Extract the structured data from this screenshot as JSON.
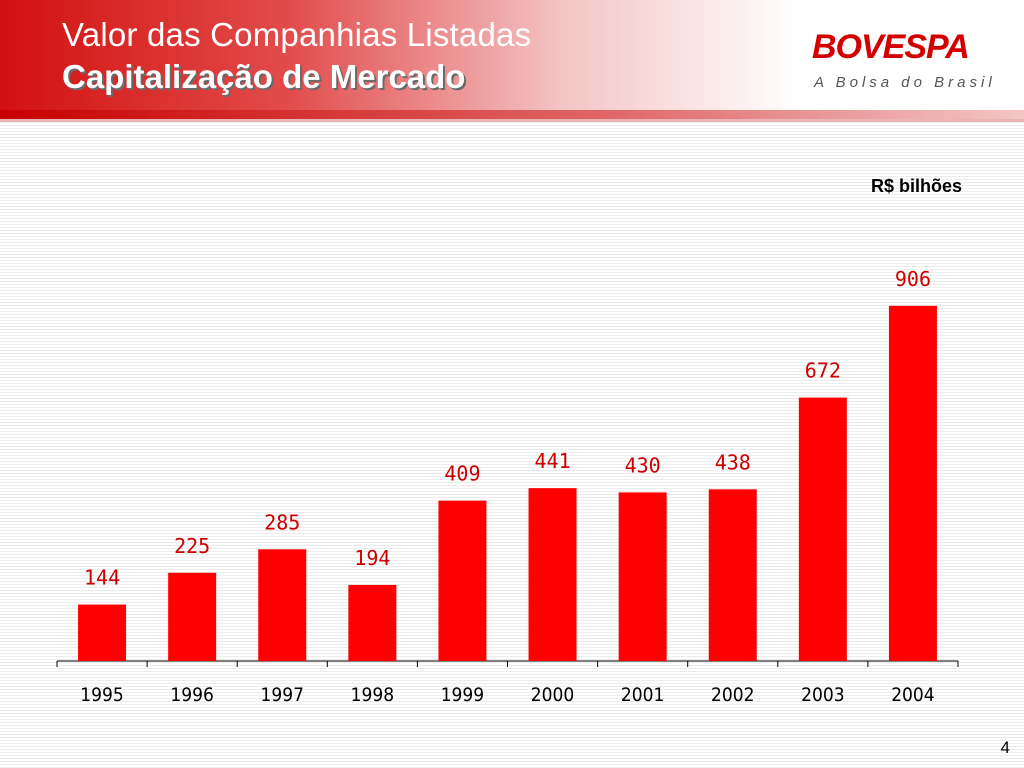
{
  "header": {
    "title_line1": "Valor das Companhias Listadas",
    "title_line2": "Capitalização de Mercado",
    "logo_text": "BOVESPA",
    "tagline": "A Bolsa do Brasil"
  },
  "colors": {
    "bar": "#ff0000",
    "value_label": "#cc0000",
    "brand_red": "#d40000"
  },
  "chart_data": {
    "type": "bar",
    "unit_label": "R$ bilhões",
    "categories": [
      "1995",
      "1996",
      "1997",
      "1998",
      "1999",
      "2000",
      "2001",
      "2002",
      "2003",
      "2004"
    ],
    "values": [
      144,
      225,
      285,
      194,
      409,
      441,
      430,
      438,
      672,
      906
    ],
    "data_labels": [
      "144",
      "225",
      "285",
      "194",
      "409",
      "441",
      "430",
      "438",
      "672",
      "906"
    ],
    "ylim": [
      0,
      1000
    ],
    "grid": false,
    "legend": "none"
  },
  "footer": {
    "page_number": "4"
  }
}
